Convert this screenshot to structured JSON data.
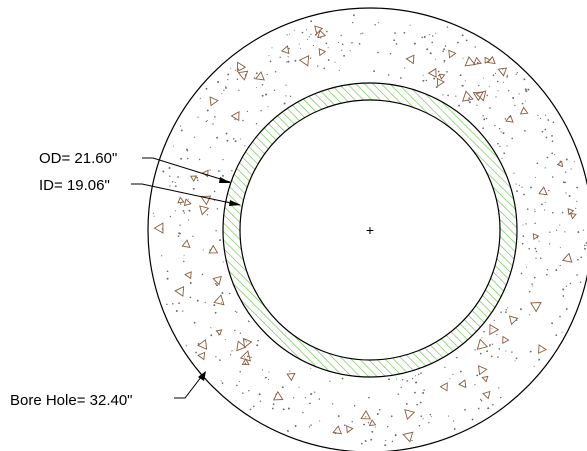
{
  "annotations": {
    "od_label": "OD= 21.60\"",
    "id_label": "ID= 19.06\"",
    "bore_label": "Bore Hole= 32.40\""
  },
  "diagram": {
    "bore_hole_diameter_in": 32.4,
    "casing_outer_diameter_in": 21.6,
    "casing_inner_diameter_in": 19.06,
    "center_marker": "+",
    "colors": {
      "casing_hatch": "#6cc24a",
      "aggregate_triangles": "#8a5a3c",
      "sand_dots": "#6b6b6b",
      "outline": "#000000"
    }
  }
}
